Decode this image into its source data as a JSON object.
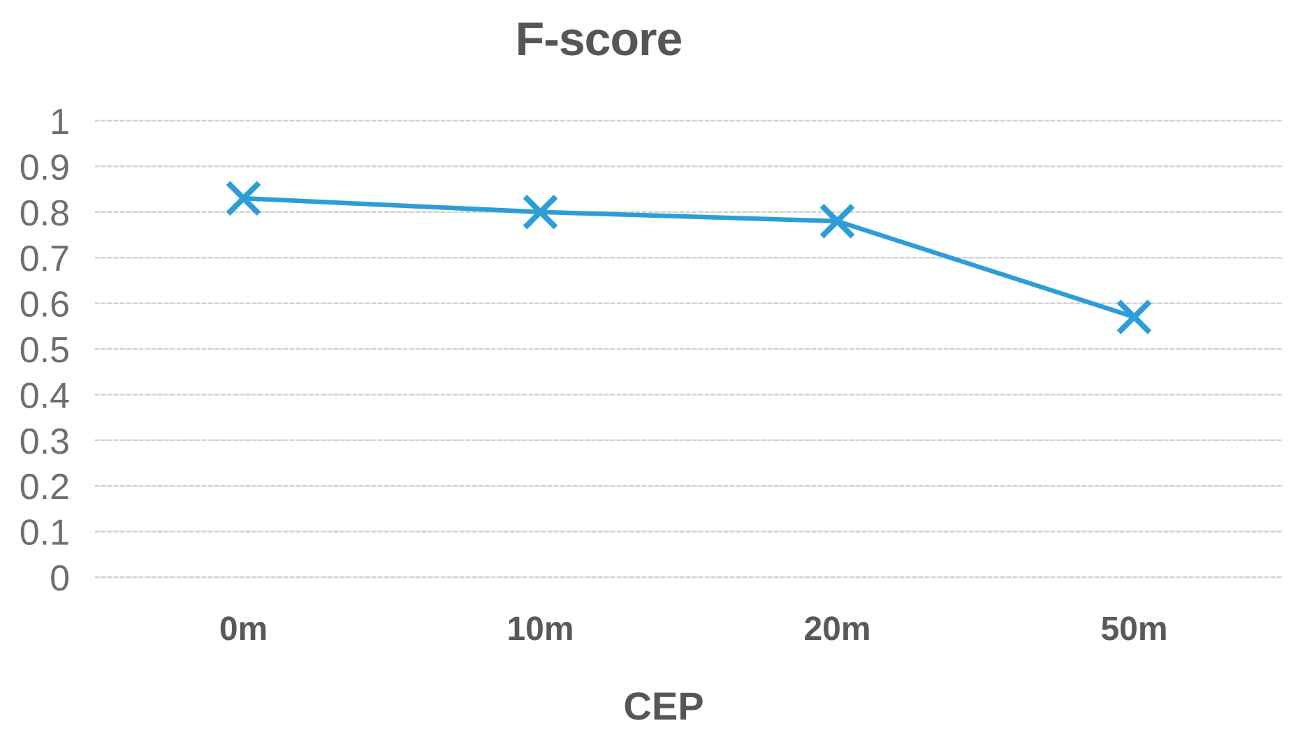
{
  "figure": {
    "title": "F-score",
    "x_axis_title": "CEP"
  },
  "chart_data": {
    "type": "line",
    "title": "F-score",
    "xlabel": "CEP",
    "ylabel": "",
    "categories": [
      "0m",
      "10m",
      "20m",
      "50m"
    ],
    "series": [
      {
        "name": "F-score",
        "marker": "x",
        "values": [
          0.83,
          0.8,
          0.78,
          0.57
        ]
      }
    ],
    "ylim": [
      0,
      1
    ],
    "yticks": [
      0,
      0.1,
      0.2,
      0.3,
      0.4,
      0.5,
      0.6,
      0.7,
      0.8,
      0.9,
      1
    ],
    "ytick_labels": [
      "0",
      "0.1",
      "0.2",
      "0.3",
      "0.4",
      "0.5",
      "0.6",
      "0.7",
      "0.8",
      "0.9",
      "1"
    ],
    "grid": true,
    "legend": false
  },
  "colors": {
    "series": "#2D9DD8",
    "grid_base": "#EDEDED",
    "grid_dash": "#D2D2D2",
    "tick_text": "#6E6E6E",
    "label_text": "#595959",
    "title_text": "#565656",
    "background": "#FFFFFF"
  }
}
